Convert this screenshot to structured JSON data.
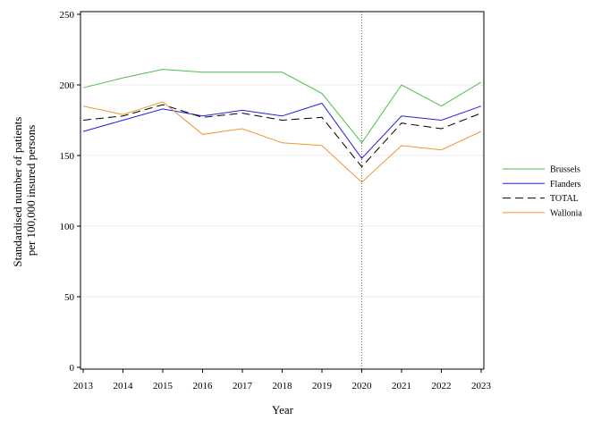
{
  "chart_data": {
    "type": "line",
    "xlabel": "Year",
    "ylabel_lines": [
      "Standardised number of patients",
      "per 100,000 insured persons"
    ],
    "x": [
      2013,
      2014,
      2015,
      2016,
      2017,
      2018,
      2019,
      2020,
      2021,
      2022,
      2023
    ],
    "ylim": [
      0,
      250
    ],
    "yticks": [
      0,
      50,
      100,
      150,
      200,
      250
    ],
    "grid": true,
    "legend_position": "right",
    "vline": 2020,
    "series": [
      {
        "name": "Brussels",
        "color": "#4cbe4c",
        "dash": "solid",
        "values": [
          198,
          205,
          211,
          209,
          209,
          209,
          194,
          159,
          200,
          185,
          202
        ]
      },
      {
        "name": "Flanders",
        "color": "#2020e0",
        "dash": "solid",
        "values": [
          167,
          175,
          183,
          178,
          182,
          178,
          187,
          148,
          178,
          175,
          185
        ]
      },
      {
        "name": "TOTAL",
        "color": "#000000",
        "dash": "dashed",
        "values": [
          175,
          178,
          186,
          177,
          180,
          175,
          177,
          142,
          173,
          169,
          180
        ]
      },
      {
        "name": "Wallonia",
        "color": "#f0962a",
        "dash": "solid",
        "values": [
          185,
          179,
          188,
          165,
          169,
          159,
          157,
          131,
          157,
          154,
          167
        ]
      }
    ]
  }
}
